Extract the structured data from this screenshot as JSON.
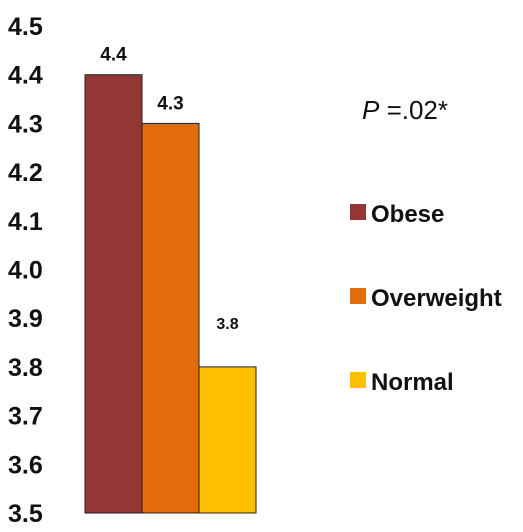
{
  "chart_data": {
    "type": "bar",
    "categories": [
      "Obese",
      "Overweight",
      "Normal"
    ],
    "values": [
      4.4,
      4.3,
      3.8
    ],
    "data_labels": [
      "4.4",
      "4.3",
      "3.8"
    ],
    "colors": [
      "#943634",
      "#E36C0A",
      "#FFC000"
    ],
    "ylim": [
      3.5,
      4.5
    ],
    "y_ticks": [
      "3.5",
      "3.6",
      "3.7",
      "3.8",
      "3.9",
      "4.0",
      "4.1",
      "4.2",
      "4.3",
      "4.4",
      "4.5"
    ],
    "grid": false,
    "legend_position": "right",
    "annotation": {
      "italic": "P",
      "rest": " =.02*"
    },
    "xlabel": "",
    "ylabel": ""
  }
}
